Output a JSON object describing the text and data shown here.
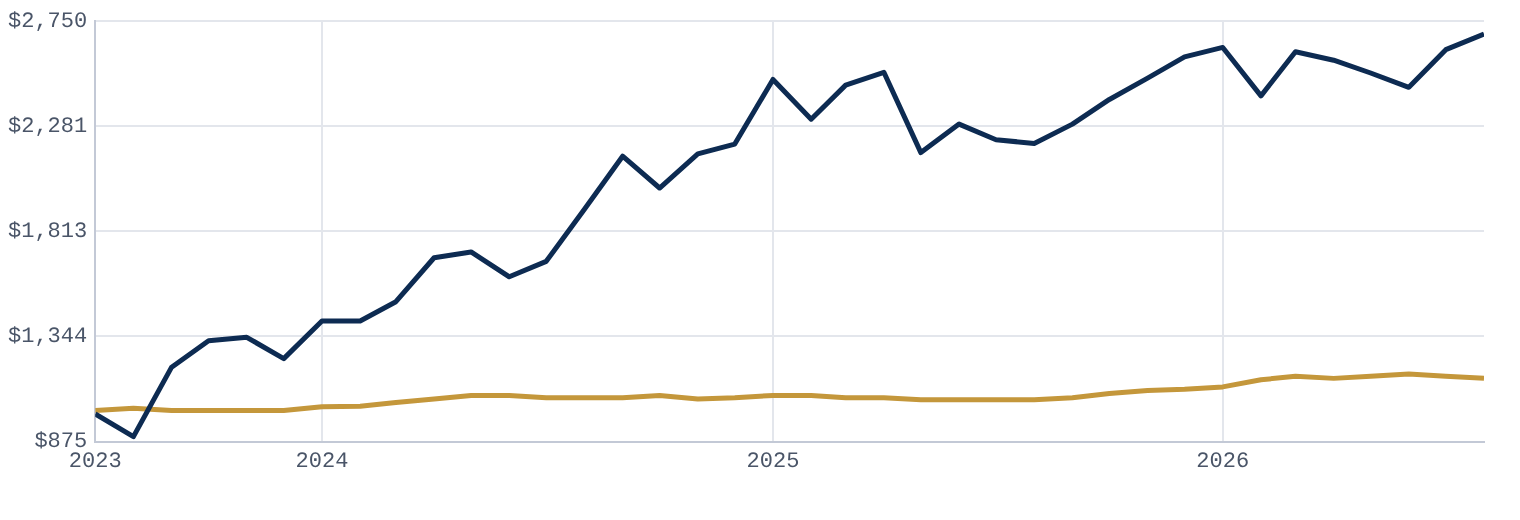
{
  "chart_data": {
    "type": "line",
    "x": [
      "2023-07",
      "2023-08",
      "2023-09",
      "2023-10",
      "2023-11",
      "2023-12",
      "2024-01",
      "2024-02",
      "2024-03",
      "2024-04",
      "2024-05",
      "2024-06",
      "2024-07",
      "2024-08",
      "2024-09",
      "2024-10",
      "2024-11",
      "2024-12",
      "2025-01",
      "2025-02",
      "2025-03",
      "2025-04",
      "2025-05",
      "2025-06",
      "2025-07",
      "2025-08",
      "2025-09",
      "2025-10",
      "2025-11",
      "2025-12",
      "2026-01",
      "2026-02",
      "2026-03",
      "2026-04",
      "2026-05",
      "2026-06",
      "2026-07",
      "2026-08"
    ],
    "series": [
      {
        "color": "#0d2b52",
        "values": [
          998,
          897,
          1207,
          1325,
          1340,
          1245,
          1413,
          1413,
          1499,
          1695,
          1721,
          1610,
          1679,
          1911,
          2148,
          2006,
          2158,
          2202,
          2490,
          2313,
          2465,
          2522,
          2164,
          2291,
          2221,
          2205,
          2291,
          2401,
          2496,
          2591,
          2633,
          2417,
          2614,
          2576,
          2519,
          2455,
          2623,
          2693
        ]
      },
      {
        "color": "#c4973b",
        "values": [
          1014,
          1024,
          1014,
          1014,
          1014,
          1014,
          1030,
          1033,
          1049,
          1065,
          1081,
          1081,
          1071,
          1071,
          1071,
          1081,
          1065,
          1071,
          1081,
          1081,
          1071,
          1071,
          1062,
          1062,
          1062,
          1062,
          1071,
          1090,
          1103,
          1109,
          1119,
          1151,
          1166,
          1157,
          1166,
          1176,
          1166,
          1157
        ]
      }
    ],
    "xlim": [
      "2023-07",
      "2026-08"
    ],
    "xticks": [
      {
        "value": "2023-07",
        "label": "2023"
      },
      {
        "value": "2024-01",
        "label": "2024"
      },
      {
        "value": "2025-01",
        "label": "2025"
      },
      {
        "value": "2026-01",
        "label": "2026"
      }
    ],
    "ylim": [
      875,
      2750
    ],
    "yticks": [
      {
        "value": 875,
        "label": "$875"
      },
      {
        "value": 1344,
        "label": "$1,344"
      },
      {
        "value": 1813,
        "label": "$1,813"
      },
      {
        "value": 2281,
        "label": "$2,281"
      },
      {
        "value": 2750,
        "label": "$2,750"
      }
    ],
    "grid": true,
    "marker": "none",
    "line_style": "solid"
  }
}
